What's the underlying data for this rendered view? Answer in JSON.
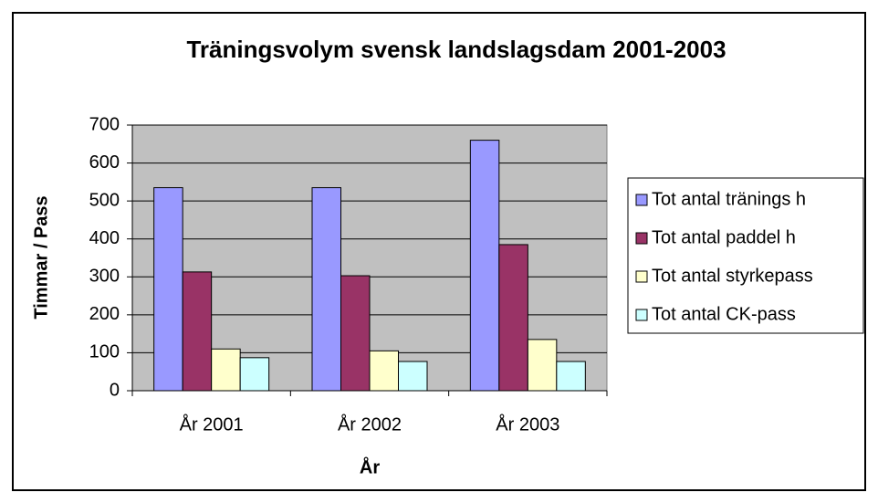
{
  "chart_data": {
    "type": "bar",
    "title": "Träningsvolym svensk landslagsdam 2001-2003",
    "x_label": "År",
    "y_label": "Timmar / Pass",
    "categories": [
      "År 2001",
      "År 2002",
      "År 2003"
    ],
    "series": [
      {
        "name": "Tot antal tränings h",
        "color": "#9999ff",
        "values": [
          535,
          535,
          660
        ]
      },
      {
        "name": "Tot antal paddel h",
        "color": "#993366",
        "values": [
          313,
          303,
          385
        ]
      },
      {
        "name": "Tot antal styrkepass",
        "color": "#ffffcc",
        "values": [
          110,
          105,
          135
        ]
      },
      {
        "name": "Tot antal CK-pass",
        "color": "#ccffff",
        "values": [
          87,
          77,
          77
        ]
      }
    ],
    "ylim": [
      0,
      700
    ],
    "yticks": [
      0,
      100,
      200,
      300,
      400,
      500,
      600,
      700
    ],
    "grid": true,
    "legend": "right"
  }
}
